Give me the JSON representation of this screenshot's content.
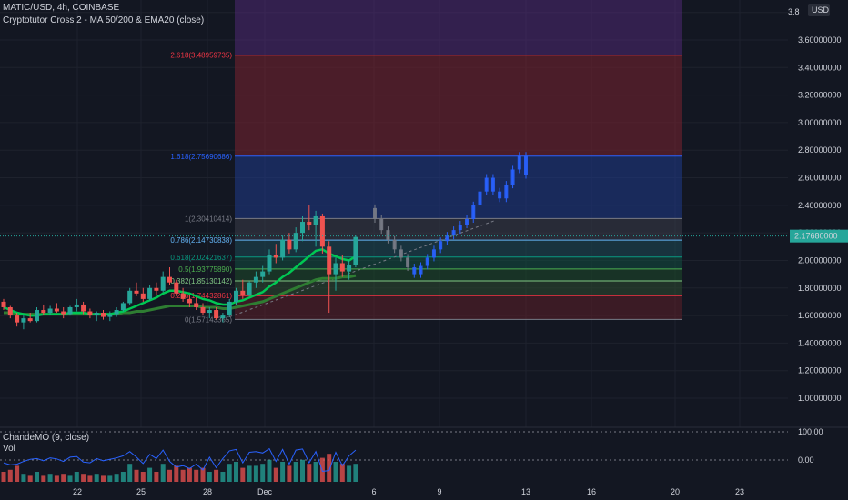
{
  "header": {
    "title": "MATIC/USD, 4h, COINBASE",
    "indicators": "Cryptotutor Cross 2 - MA 50/200 & EMA20 (close)",
    "oscillator": "ChandeMO (9, close)",
    "volume": "Vol"
  },
  "price_axis": {
    "currency": "USD",
    "top_label": "3.8",
    "labels": [
      "3.60000000",
      "3.40000000",
      "3.20000000",
      "3.00000000",
      "2.80000000",
      "2.60000000",
      "2.40000000",
      "2.20000000",
      "2.00000000",
      "1.80000000",
      "1.60000000",
      "1.40000000",
      "1.20000000",
      "1.00000000"
    ],
    "current_price": "2.17680000",
    "current_color": "#26a69a"
  },
  "osc_axis": {
    "labels": [
      "100.00",
      "0.00"
    ]
  },
  "time_axis": {
    "labels": [
      "22",
      "25",
      "28",
      "Dec",
      "6",
      "9",
      "13",
      "16",
      "20",
      "23"
    ]
  },
  "fib_levels": [
    {
      "label": "2.618(3.48959735)",
      "price": 3.48959735,
      "color": "#f23645"
    },
    {
      "label": "1.618(2.75690686)",
      "price": 2.75690686,
      "color": "#2962ff"
    },
    {
      "label": "1(2.30410414)",
      "price": 2.30410414,
      "color": "#787b86"
    },
    {
      "label": "0.786(2.14730838)",
      "price": 2.14730838,
      "color": "#64b5f6"
    },
    {
      "label": "0.618(2.02421637)",
      "price": 2.02421637,
      "color": "#089981"
    },
    {
      "label": "0.5(1.93775890)",
      "price": 1.9377589,
      "color": "#4caf50"
    },
    {
      "label": "0.382(1.85130142)",
      "price": 1.85130142,
      "color": "#81c784"
    },
    {
      "label": "0.236(1.74432861)",
      "price": 1.74432861,
      "color": "#f23645"
    },
    {
      "label": "0(1.57143365)",
      "price": 1.57143365,
      "color": "#787b86"
    }
  ],
  "chart_data": {
    "type": "candlestick",
    "ylim": [
      0.9,
      3.85
    ],
    "candles": [
      [
        1.7,
        1.72,
        1.64,
        1.66
      ],
      [
        1.66,
        1.67,
        1.58,
        1.6
      ],
      [
        1.6,
        1.62,
        1.52,
        1.55
      ],
      [
        1.55,
        1.6,
        1.5,
        1.58
      ],
      [
        1.58,
        1.62,
        1.55,
        1.56
      ],
      [
        1.56,
        1.66,
        1.55,
        1.64
      ],
      [
        1.64,
        1.68,
        1.6,
        1.62
      ],
      [
        1.62,
        1.67,
        1.6,
        1.65
      ],
      [
        1.65,
        1.69,
        1.62,
        1.63
      ],
      [
        1.63,
        1.66,
        1.58,
        1.61
      ],
      [
        1.61,
        1.67,
        1.6,
        1.66
      ],
      [
        1.66,
        1.72,
        1.63,
        1.68
      ],
      [
        1.68,
        1.7,
        1.61,
        1.63
      ],
      [
        1.63,
        1.65,
        1.58,
        1.6
      ],
      [
        1.6,
        1.63,
        1.56,
        1.62
      ],
      [
        1.62,
        1.64,
        1.57,
        1.59
      ],
      [
        1.59,
        1.63,
        1.56,
        1.61
      ],
      [
        1.61,
        1.66,
        1.59,
        1.64
      ],
      [
        1.64,
        1.7,
        1.63,
        1.69
      ],
      [
        1.69,
        1.8,
        1.68,
        1.78
      ],
      [
        1.78,
        1.84,
        1.74,
        1.76
      ],
      [
        1.76,
        1.8,
        1.7,
        1.72
      ],
      [
        1.72,
        1.82,
        1.71,
        1.8
      ],
      [
        1.8,
        1.84,
        1.75,
        1.78
      ],
      [
        1.78,
        1.92,
        1.77,
        1.88
      ],
      [
        1.88,
        1.95,
        1.82,
        1.84
      ],
      [
        1.84,
        1.86,
        1.74,
        1.76
      ],
      [
        1.76,
        1.8,
        1.7,
        1.72
      ],
      [
        1.72,
        1.75,
        1.66,
        1.69
      ],
      [
        1.69,
        1.73,
        1.64,
        1.66
      ],
      [
        1.66,
        1.69,
        1.6,
        1.62
      ],
      [
        1.62,
        1.66,
        1.58,
        1.64
      ],
      [
        1.64,
        1.66,
        1.57,
        1.58
      ],
      [
        1.58,
        1.62,
        1.55,
        1.6
      ],
      [
        1.6,
        1.72,
        1.59,
        1.7
      ],
      [
        1.7,
        1.8,
        1.68,
        1.78
      ],
      [
        1.78,
        1.86,
        1.72,
        1.75
      ],
      [
        1.75,
        1.85,
        1.74,
        1.84
      ],
      [
        1.84,
        1.92,
        1.8,
        1.88
      ],
      [
        1.88,
        1.96,
        1.84,
        1.92
      ],
      [
        1.92,
        2.08,
        1.9,
        2.04
      ],
      [
        2.04,
        2.12,
        1.98,
        2.02
      ],
      [
        2.02,
        2.18,
        2.0,
        2.15
      ],
      [
        2.15,
        2.2,
        2.05,
        2.08
      ],
      [
        2.08,
        2.24,
        2.06,
        2.2
      ],
      [
        2.2,
        2.32,
        2.14,
        2.28
      ],
      [
        2.28,
        2.4,
        2.22,
        2.26
      ],
      [
        2.26,
        2.36,
        2.1,
        2.32
      ],
      [
        2.32,
        2.34,
        2.05,
        2.1
      ],
      [
        2.1,
        2.14,
        1.62,
        1.9
      ],
      [
        1.9,
        2.02,
        1.78,
        1.98
      ],
      [
        1.98,
        2.04,
        1.88,
        1.92
      ],
      [
        1.92,
        2.0,
        1.86,
        1.97
      ],
      [
        1.97,
        2.18,
        1.95,
        2.17
      ]
    ],
    "projection_x_start": 56,
    "projection": [
      [
        2.38,
        2.3
      ],
      [
        2.3,
        2.22
      ],
      [
        2.22,
        2.15
      ],
      [
        2.15,
        2.08
      ],
      [
        2.08,
        2.02
      ],
      [
        2.02,
        1.95
      ],
      [
        1.95,
        1.9
      ],
      [
        1.9,
        1.96
      ],
      [
        1.96,
        2.02
      ],
      [
        2.02,
        2.08
      ],
      [
        2.08,
        2.14
      ],
      [
        2.14,
        2.18
      ],
      [
        2.18,
        2.22
      ],
      [
        2.22,
        2.26
      ],
      [
        2.26,
        2.3
      ],
      [
        2.3,
        2.4
      ],
      [
        2.4,
        2.5
      ],
      [
        2.5,
        2.6
      ],
      [
        2.6,
        2.5
      ],
      [
        2.5,
        2.45
      ],
      [
        2.45,
        2.55
      ],
      [
        2.55,
        2.66
      ],
      [
        2.66,
        2.76
      ],
      [
        2.76,
        2.62
      ]
    ],
    "ema20": [
      1.66,
      1.64,
      1.62,
      1.61,
      1.6,
      1.6,
      1.61,
      1.61,
      1.61,
      1.61,
      1.62,
      1.62,
      1.62,
      1.61,
      1.61,
      1.61,
      1.61,
      1.62,
      1.63,
      1.65,
      1.67,
      1.69,
      1.71,
      1.73,
      1.76,
      1.78,
      1.78,
      1.77,
      1.76,
      1.74,
      1.72,
      1.71,
      1.69,
      1.68,
      1.68,
      1.7,
      1.71,
      1.73,
      1.75,
      1.77,
      1.81,
      1.84,
      1.88,
      1.91,
      1.95,
      1.99,
      2.03,
      2.07,
      2.08,
      2.05,
      2.03,
      2.01,
      2.0,
      2.03
    ],
    "ma50": [
      1.62,
      1.62,
      1.61,
      1.61,
      1.61,
      1.61,
      1.61,
      1.61,
      1.61,
      1.61,
      1.61,
      1.61,
      1.61,
      1.61,
      1.61,
      1.61,
      1.61,
      1.61,
      1.62,
      1.62,
      1.63,
      1.63,
      1.64,
      1.65,
      1.66,
      1.67,
      1.67,
      1.67,
      1.67,
      1.67,
      1.66,
      1.66,
      1.66,
      1.65,
      1.65,
      1.66,
      1.67,
      1.68,
      1.69,
      1.7,
      1.72,
      1.74,
      1.76,
      1.78,
      1.8,
      1.82,
      1.84,
      1.86,
      1.87,
      1.87,
      1.87,
      1.88,
      1.88,
      1.89
    ],
    "trendline": [
      [
        34,
        1.59
      ],
      [
        74,
        2.29
      ]
    ],
    "chande": [
      -20,
      -35,
      -30,
      -10,
      5,
      10,
      -5,
      15,
      8,
      -10,
      20,
      25,
      -15,
      -20,
      10,
      -5,
      5,
      15,
      30,
      60,
      20,
      -25,
      40,
      10,
      70,
      -10,
      -50,
      -40,
      -60,
      -30,
      -70,
      20,
      -55,
      10,
      65,
      75,
      -20,
      55,
      60,
      50,
      80,
      -10,
      75,
      -30,
      70,
      78,
      -20,
      60,
      -80,
      -75,
      55,
      -40,
      30,
      70
    ],
    "volume": [
      0.5,
      0.6,
      0.8,
      0.4,
      0.3,
      0.5,
      0.3,
      0.4,
      0.3,
      0.4,
      0.3,
      0.5,
      0.4,
      0.3,
      0.4,
      0.3,
      0.3,
      0.4,
      0.5,
      0.9,
      0.6,
      0.5,
      0.7,
      0.5,
      0.9,
      0.6,
      0.8,
      0.6,
      0.7,
      0.6,
      0.7,
      0.5,
      0.6,
      0.5,
      0.9,
      1.0,
      0.7,
      0.8,
      0.8,
      0.9,
      1.1,
      0.7,
      1.0,
      0.8,
      1.0,
      1.1,
      0.9,
      1.0,
      1.2,
      1.4,
      1.0,
      0.9,
      0.8,
      0.9
    ]
  }
}
